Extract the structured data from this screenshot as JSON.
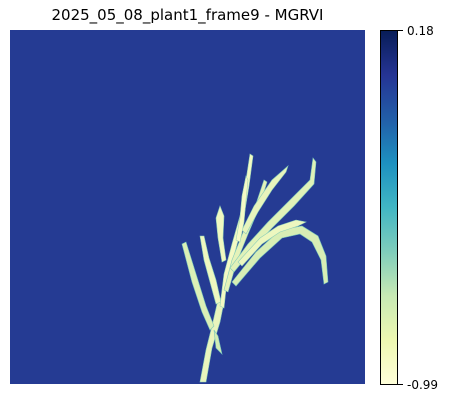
{
  "figure": {
    "title": "2025_05_08_plant1_frame9 - MGRVI"
  },
  "image": {
    "subject": "plant",
    "background_color": "#253b93",
    "plant_colors": [
      "#f4f9c0",
      "#d6edb3",
      "#a4d8b8",
      "#6cc3bd"
    ]
  },
  "colorbar": {
    "colormap": "YlGnBu",
    "max_label": "0.18",
    "min_label": "-0.99",
    "max_value": 0.18,
    "min_value": -0.99,
    "gradient_stops": [
      "#081d58",
      "#253494",
      "#225ea8",
      "#1d91c0",
      "#41b6c4",
      "#7fcdbb",
      "#c7e9b4",
      "#edf8b1",
      "#ffffd9"
    ]
  }
}
